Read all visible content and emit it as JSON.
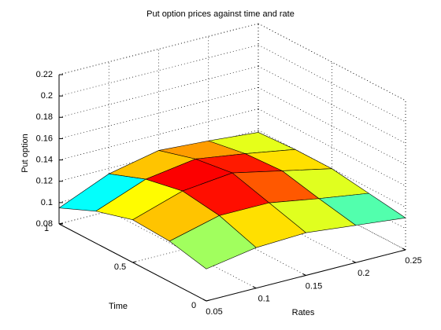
{
  "chart_data": {
    "type": "surface",
    "title": "Put option prices against time and rate",
    "xlabel": "Rates",
    "ylabel": "Time",
    "zlabel": "Put option",
    "x": [
      0.05,
      0.1,
      0.15,
      0.2,
      0.25
    ],
    "y": [
      0,
      0.25,
      0.5,
      0.75,
      1
    ],
    "z": [
      [
        0.11,
        0.118,
        0.12,
        0.115,
        0.11
      ],
      [
        0.118,
        0.13,
        0.13,
        0.122,
        0.115
      ],
      [
        0.12,
        0.135,
        0.14,
        0.13,
        0.12
      ],
      [
        0.11,
        0.128,
        0.135,
        0.128,
        0.12
      ],
      [
        0.095,
        0.115,
        0.125,
        0.122,
        0.118
      ]
    ],
    "xlim": [
      0.05,
      0.25
    ],
    "ylim": [
      0,
      1
    ],
    "zlim": [
      0.08,
      0.22
    ],
    "xticks": [
      0.05,
      0.1,
      0.15,
      0.2,
      0.25
    ],
    "yticks": [
      0,
      0.5,
      1
    ],
    "zticks": [
      0.08,
      0.1,
      0.12,
      0.14,
      0.16,
      0.18,
      0.2,
      0.22
    ],
    "grid": true,
    "colormap": "jet"
  }
}
